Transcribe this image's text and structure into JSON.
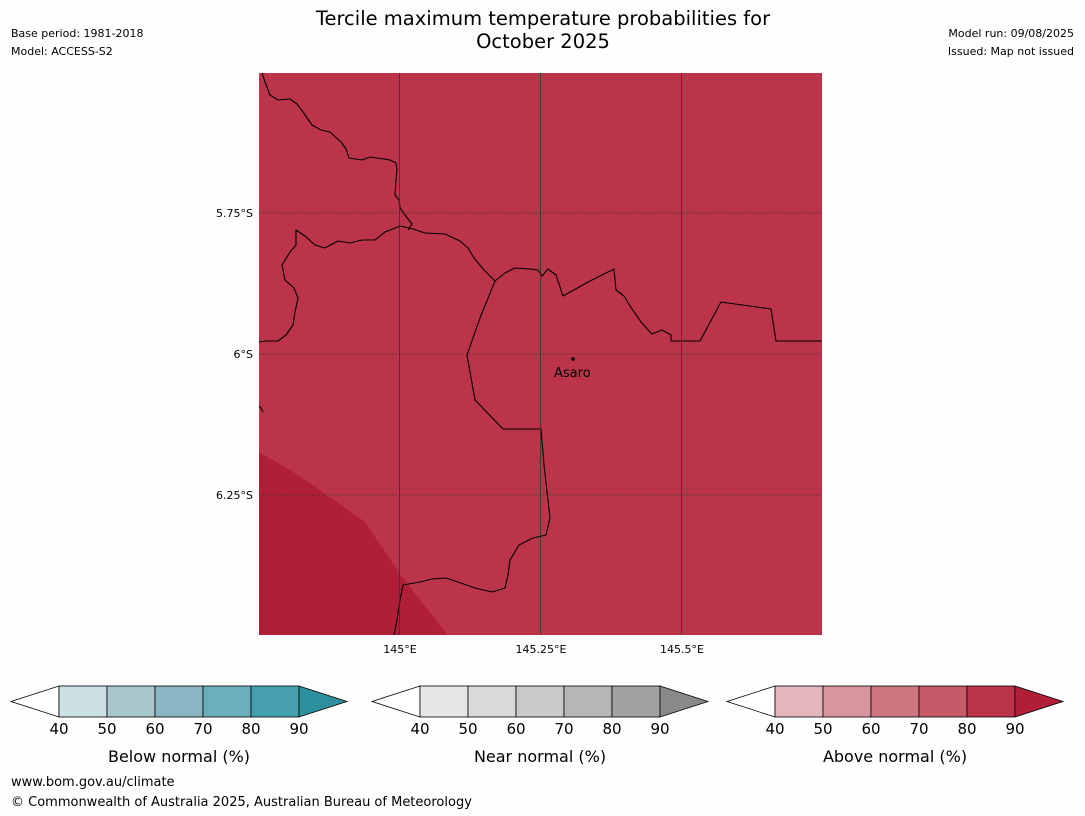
{
  "title_line1": "Tercile maximum temperature probabilities for",
  "title_line2": "October 2025",
  "meta_left": {
    "base_period": "Base period: 1981-2018",
    "model": "Model: ACCESS-S2"
  },
  "meta_right": {
    "model_run": "Model run: 09/08/2025",
    "issued": "Issued: Map not issued"
  },
  "map": {
    "lat_labels": [
      "5.75°S",
      "6°S",
      "6.25°S"
    ],
    "lon_labels": [
      "145°E",
      "145.25°E",
      "145.5°E"
    ],
    "place": {
      "name": "Asaro"
    },
    "colors": {
      "main": "#bb344a",
      "darker": "#b11e38",
      "border": "#000000",
      "grid": "#333333"
    },
    "shading": {
      "category": "Above normal",
      "main_level": "80-90",
      "dark_level": ">90"
    }
  },
  "legends": [
    {
      "title": "Below normal (%)",
      "ticks": [
        "40",
        "50",
        "60",
        "70",
        "80",
        "90"
      ],
      "colors": [
        "#ffffff",
        "#cbe1e6",
        "#a8c7cd",
        "#8bb6c3",
        "#6baebc",
        "#47a0af",
        "#2e8f9f"
      ]
    },
    {
      "title": "Near normal (%)",
      "ticks": [
        "40",
        "50",
        "60",
        "70",
        "80",
        "90"
      ],
      "colors": [
        "#ffffff",
        "#e6e6e6",
        "#d9d9d9",
        "#c9c9c9",
        "#b6b6b6",
        "#a1a1a1",
        "#8a8a8a"
      ]
    },
    {
      "title": "Above normal (%)",
      "ticks": [
        "40",
        "50",
        "60",
        "70",
        "80",
        "90"
      ],
      "colors": [
        "#ffffff",
        "#e2b6bc",
        "#d8959e",
        "#cd7680",
        "#c75a69",
        "#bb344a",
        "#b11e38"
      ]
    }
  ],
  "footer": {
    "url": "www.bom.gov.au/climate",
    "copyright": "© Commonwealth of Australia 2025, Australian Bureau of Meteorology"
  }
}
